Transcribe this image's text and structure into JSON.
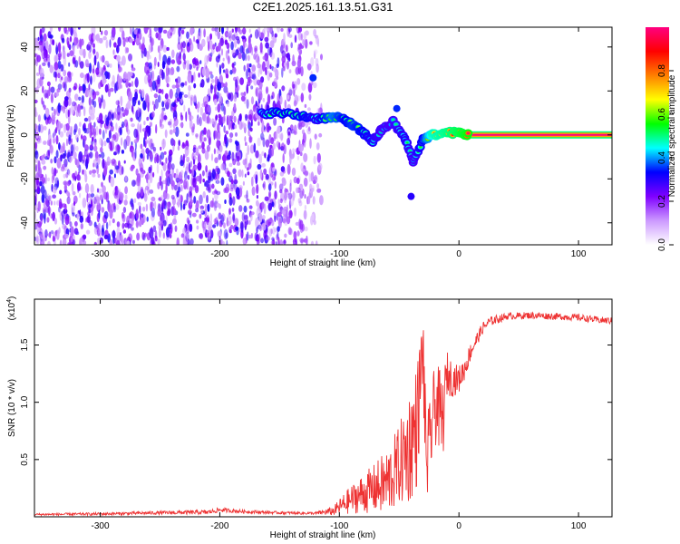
{
  "title": "C2E1.2025.161.13.51.G31",
  "chart_data": [
    {
      "type": "heatmap",
      "xlabel": "Height of straight line (km)",
      "ylabel": "Frequency (Hz)",
      "xlim": [
        -355,
        128
      ],
      "ylim": [
        -50,
        49
      ],
      "xticks": [
        -300,
        -200,
        -100,
        0,
        100
      ],
      "yticks": [
        -40,
        -20,
        0,
        20,
        40
      ],
      "colorbar": {
        "label": "Normalized spectral amplitude",
        "range": [
          0,
          1
        ],
        "ticks": [
          "0.0",
          "0.2",
          "0.4",
          "0.6",
          "0.8"
        ],
        "colors": [
          "#ffffff",
          "#cc99ff",
          "#7f00ff",
          "#0000ff",
          "#00ffff",
          "#00ff00",
          "#ffff00",
          "#ff7f00",
          "#ff0000",
          "#ff0080"
        ]
      },
      "noise_region": {
        "x_from": -355,
        "x_to": -115,
        "amplitude": 0.3
      },
      "ridge": [
        {
          "x": -165,
          "y": 10,
          "a": 0.55
        },
        {
          "x": -150,
          "y": 10,
          "a": 0.6
        },
        {
          "x": -130,
          "y": 8.5,
          "a": 0.6
        },
        {
          "x": -118,
          "y": 7.5,
          "a": 0.55
        },
        {
          "x": -105,
          "y": 8,
          "a": 0.7
        },
        {
          "x": -95,
          "y": 7,
          "a": 0.6
        },
        {
          "x": -88,
          "y": 4,
          "a": 0.65
        },
        {
          "x": -80,
          "y": 1,
          "a": 0.6
        },
        {
          "x": -72,
          "y": -3,
          "a": 0.55
        },
        {
          "x": -65,
          "y": 2,
          "a": 0.5
        },
        {
          "x": -55,
          "y": 6,
          "a": 0.5
        },
        {
          "x": -45,
          "y": -2,
          "a": 0.55
        },
        {
          "x": -38,
          "y": -12,
          "a": 0.5
        },
        {
          "x": -30,
          "y": -2,
          "a": 0.6
        },
        {
          "x": -22,
          "y": 0,
          "a": 0.85
        },
        {
          "x": -10,
          "y": 1,
          "a": 0.9
        },
        {
          "x": 0,
          "y": 1,
          "a": 0.95
        },
        {
          "x": 8,
          "y": 0,
          "a": 1.0
        }
      ],
      "spurs": [
        {
          "x": -122,
          "y": 26,
          "a": 0.35
        },
        {
          "x": -52,
          "y": 12,
          "a": 0.35
        },
        {
          "x": -40,
          "y": -28,
          "a": 0.3
        }
      ],
      "line": {
        "x_from": 8,
        "x_to": 128,
        "y": 0,
        "a": 1.0
      }
    },
    {
      "type": "line",
      "xlabel": "Height of straight line (km)",
      "ylabel": "SNR (10 * v/v)",
      "scale_label": "(x10",
      "scale_exp": "4",
      "xlim": [
        -355,
        128
      ],
      "ylim": [
        0,
        1.9
      ],
      "xticks": [
        -300,
        -200,
        -100,
        0,
        100
      ],
      "yticks": [
        "0.5",
        "1.0",
        "1.5"
      ],
      "line_color": "#ee3333",
      "series": [
        {
          "x": [
            -355,
            -300,
            -250,
            -210,
            -200,
            -180,
            -150,
            -120,
            -105,
            -95,
            -85,
            -70,
            -60,
            -50,
            -42,
            -35,
            -30,
            -28,
            -25,
            -22,
            -18,
            -14,
            -10,
            -5,
            0,
            5,
            10,
            15,
            20,
            25,
            30,
            40,
            60,
            80,
            100,
            115,
            128
          ],
          "y": [
            0.02,
            0.025,
            0.035,
            0.04,
            0.06,
            0.045,
            0.035,
            0.03,
            0.05,
            0.12,
            0.18,
            0.25,
            0.3,
            0.45,
            0.6,
            0.8,
            1.5,
            0.6,
            0.5,
            0.9,
            1.0,
            0.8,
            1.25,
            1.2,
            1.2,
            1.3,
            1.45,
            1.55,
            1.65,
            1.7,
            1.72,
            1.75,
            1.76,
            1.75,
            1.74,
            1.72,
            1.71
          ]
        }
      ],
      "noise_amplitude": [
        0.01,
        0.012,
        0.015,
        0.02,
        0.02,
        0.015,
        0.012,
        0.012,
        0.04,
        0.1,
        0.15,
        0.22,
        0.3,
        0.35,
        0.5,
        0.55,
        0.35,
        0.5,
        0.45,
        0.35,
        0.35,
        0.4,
        0.2,
        0.15,
        0.12,
        0.1,
        0.08,
        0.06,
        0.05,
        0.04,
        0.04,
        0.03,
        0.03,
        0.03,
        0.03,
        0.03,
        0.03
      ]
    }
  ]
}
